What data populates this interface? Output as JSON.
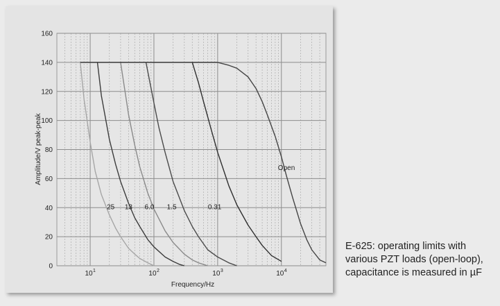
{
  "chart_data": {
    "type": "line",
    "title": "",
    "xlabel": "Frequency/Hz",
    "ylabel": "Amplitude/V peak-peak",
    "x_scale": "log",
    "xlim": [
      3,
      50000
    ],
    "ylim": [
      0,
      160
    ],
    "x_ticks": [
      {
        "value": 10,
        "base": "10",
        "exp": "1"
      },
      {
        "value": 100,
        "base": "10",
        "exp": "2"
      },
      {
        "value": 1000,
        "base": "10",
        "exp": "3"
      },
      {
        "value": 10000,
        "base": "10",
        "exp": "4"
      }
    ],
    "y_ticks": [
      "0",
      "20",
      "40",
      "60",
      "80",
      "100",
      "120",
      "140",
      "160"
    ],
    "grid": true,
    "series": [
      {
        "name": "25",
        "color": "#a6a6a6",
        "x": [
          7,
          8,
          10,
          12,
          15,
          20,
          25,
          30,
          40,
          50,
          60,
          80,
          100
        ],
        "y": [
          140,
          115,
          85,
          65,
          49,
          35,
          26,
          20,
          12,
          8,
          5,
          2,
          0
        ]
      },
      {
        "name": "13",
        "color": "#3c3c3c",
        "x": [
          13,
          15,
          20,
          25,
          30,
          40,
          50,
          60,
          80,
          100,
          150,
          200,
          250,
          300
        ],
        "y": [
          140,
          117,
          87,
          70,
          58,
          43,
          33,
          27,
          18,
          13,
          6,
          3,
          1,
          0
        ]
      },
      {
        "name": "6.0",
        "color": "#8a8a8a",
        "x": [
          30,
          40,
          50,
          60,
          80,
          100,
          150,
          200,
          300,
          400,
          500,
          700
        ],
        "y": [
          140,
          104,
          83,
          68,
          50,
          39,
          24,
          16,
          8,
          4,
          2,
          0
        ]
      },
      {
        "name": "1.5",
        "color": "#4a4a4a",
        "x": [
          75,
          100,
          120,
          150,
          200,
          300,
          400,
          500,
          700,
          1000,
          1500,
          2000
        ],
        "y": [
          140,
          112,
          95,
          78,
          58,
          38,
          27,
          20,
          11,
          6,
          2,
          0
        ]
      },
      {
        "name": "0.31",
        "color": "#2e2e2e",
        "x": [
          400,
          500,
          600,
          800,
          1000,
          1500,
          2000,
          3000,
          4000,
          5000,
          7000,
          10000
        ],
        "y": [
          140,
          126,
          113,
          93,
          78,
          55,
          42,
          28,
          20,
          14,
          7,
          3
        ]
      },
      {
        "name": "Open",
        "color": "#444444",
        "x": [
          1000,
          1500,
          2000,
          3000,
          4000,
          5000,
          6000,
          8000,
          10000,
          12000,
          15000,
          20000,
          25000,
          30000,
          40000,
          50000
        ],
        "y": [
          140,
          138,
          136,
          130,
          122,
          113,
          104,
          89,
          75,
          62,
          47,
          29,
          18,
          11,
          4,
          2
        ]
      }
    ],
    "annotations": [
      {
        "text": "25",
        "x": 21,
        "y": 39
      },
      {
        "text": "13",
        "x": 40,
        "y": 39
      },
      {
        "text": "6.0",
        "x": 85,
        "y": 39
      },
      {
        "text": "1.5",
        "x": 190,
        "y": 39
      },
      {
        "text": "0.31",
        "x": 900,
        "y": 39
      },
      {
        "text": "Open",
        "x": 12000,
        "y": 66
      }
    ]
  },
  "caption": "E-625: operating limits with various PZT loads (open-loop), capacitance is measured in µF"
}
